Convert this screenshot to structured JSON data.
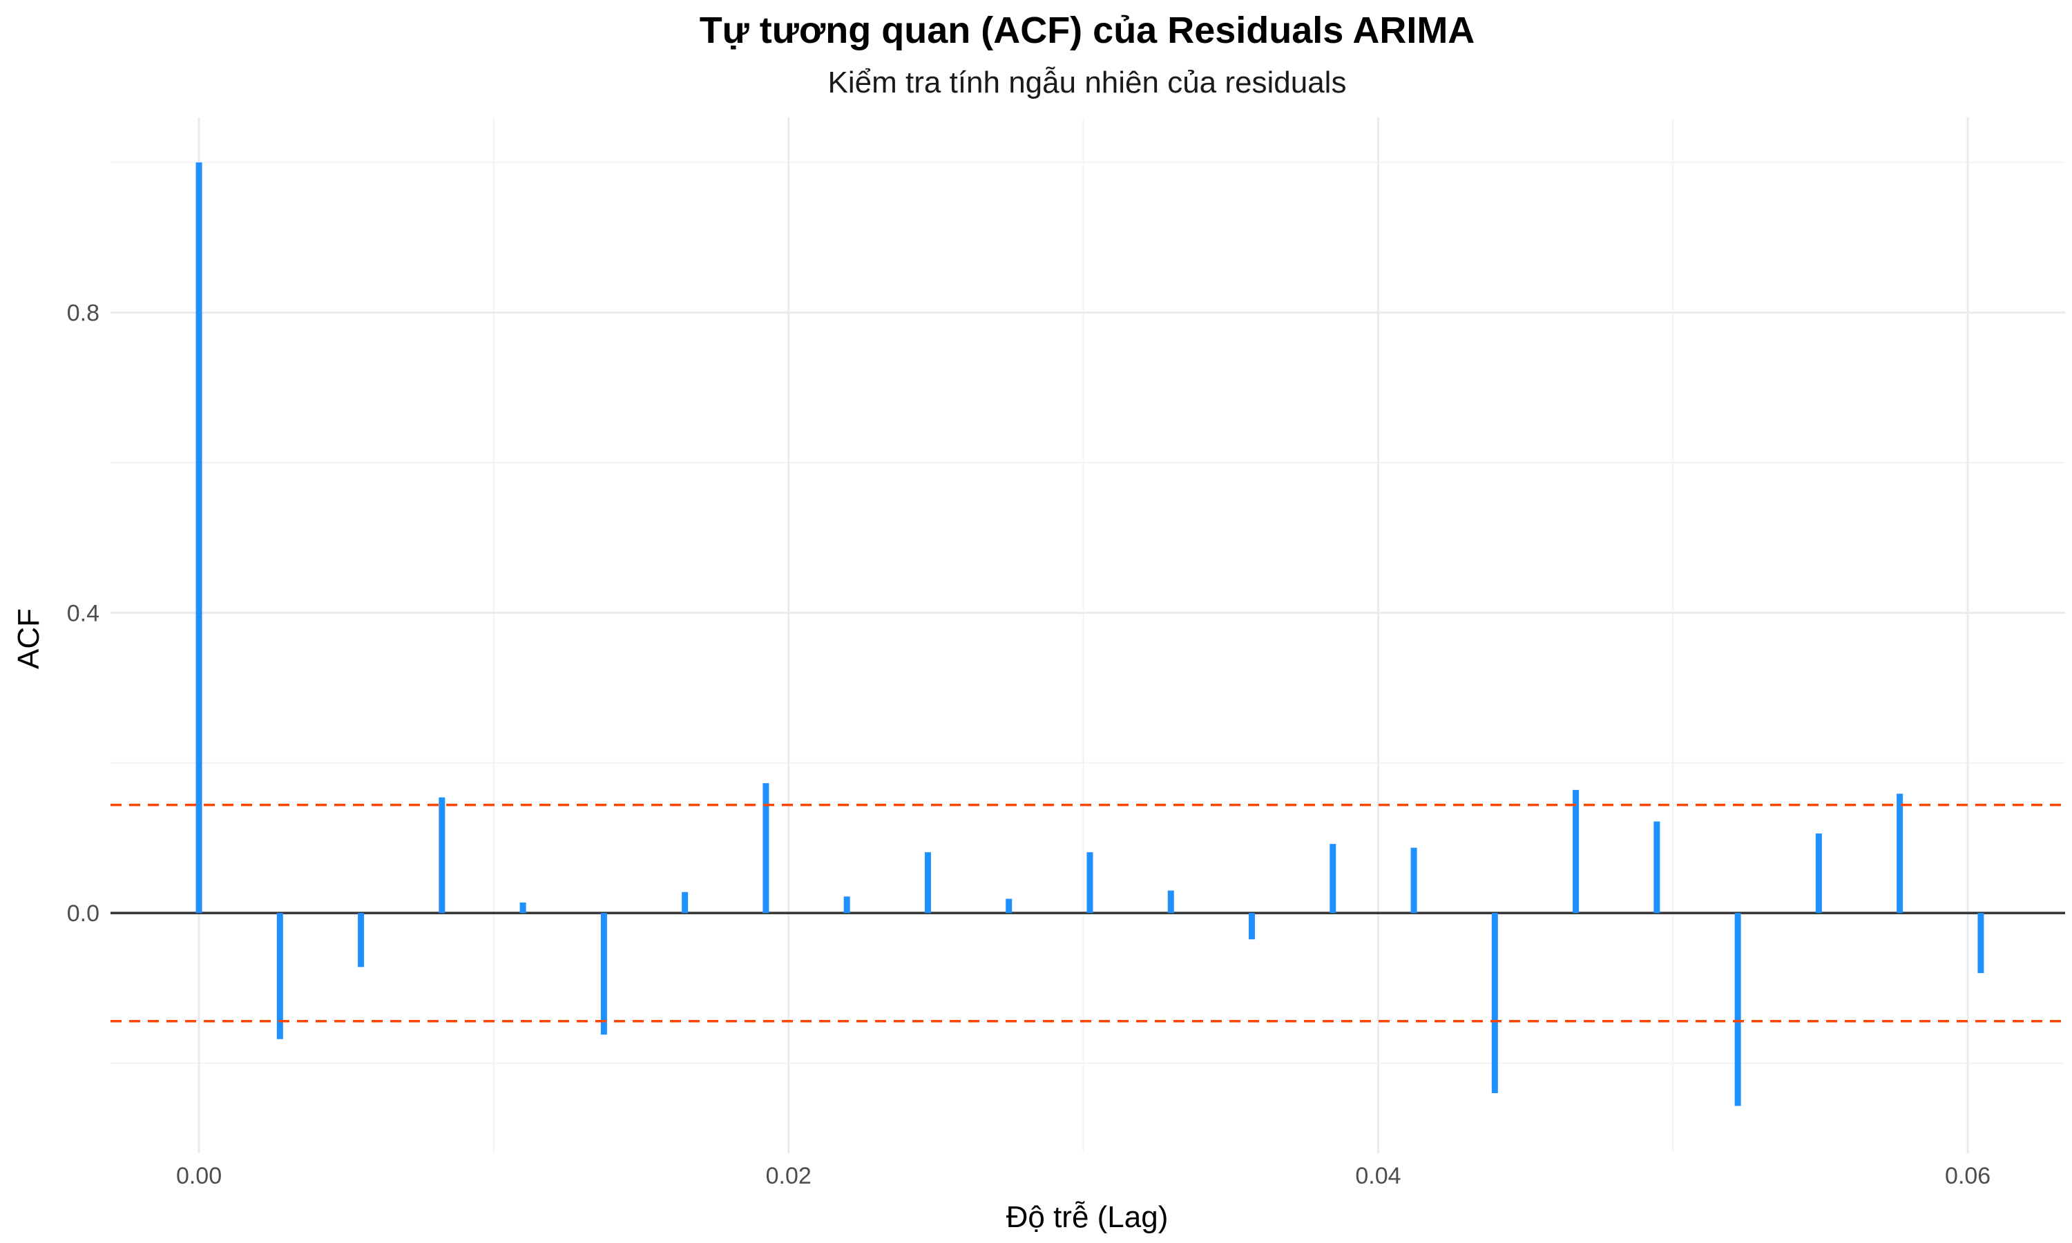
{
  "chart_data": {
    "type": "bar",
    "title": "Tự tương quan (ACF) của Residuals ARIMA",
    "subtitle": "Kiểm tra tính ngẫu nhiên của residuals",
    "xlabel": "Độ trễ (Lag)",
    "ylabel": "ACF",
    "xlim": [
      -0.003,
      0.0633
    ],
    "ylim": [
      -0.32,
      1.06
    ],
    "x_ticks": [
      {
        "value": 0.0,
        "label": "0.00"
      },
      {
        "value": 0.02,
        "label": "0.02"
      },
      {
        "value": 0.04,
        "label": "0.04"
      },
      {
        "value": 0.06,
        "label": "0.06"
      }
    ],
    "y_ticks": [
      {
        "value": 0.0,
        "label": "0.0"
      },
      {
        "value": 0.4,
        "label": "0.4"
      },
      {
        "value": 0.8,
        "label": "0.8"
      }
    ],
    "grid": true,
    "zero_line": 0.0,
    "confidence_bounds": [
      0.144,
      -0.144
    ],
    "colors": {
      "bars": "#1E90FF",
      "confidence": "#FF4500",
      "zero_line": "#333333"
    },
    "series": [
      {
        "x": [
          0.0,
          0.002747,
          0.005495,
          0.008242,
          0.010989,
          0.013736,
          0.016484,
          0.019231,
          0.021978,
          0.024725,
          0.027473,
          0.03022,
          0.032967,
          0.035714,
          0.038462,
          0.041209,
          0.043956,
          0.046703,
          0.049451,
          0.052198,
          0.054945,
          0.057692,
          0.06044
        ],
        "values": [
          1.0,
          -0.168,
          -0.072,
          0.154,
          0.014,
          -0.162,
          0.028,
          0.173,
          0.022,
          0.081,
          0.019,
          0.081,
          0.03,
          -0.035,
          0.092,
          0.087,
          -0.24,
          0.164,
          0.122,
          -0.257,
          0.106,
          0.159,
          -0.08
        ]
      }
    ]
  }
}
